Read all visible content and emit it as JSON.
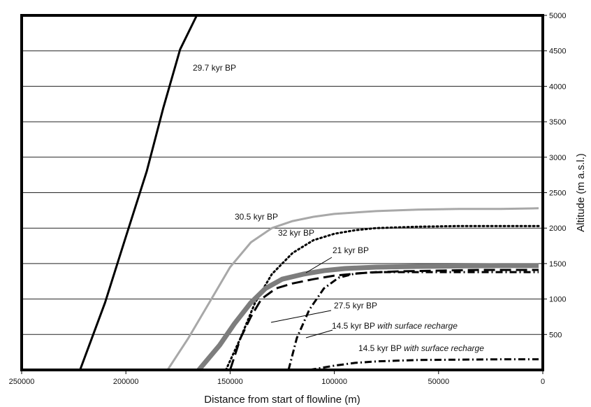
{
  "chart_data": {
    "type": "line",
    "xlabel": "Distance from start of flowline (m)",
    "ylabel": "Altitude (m a.s.l.)",
    "xlim": [
      250000,
      0
    ],
    "ylim": [
      0,
      5000
    ],
    "x_ticks": [
      "250000",
      "200000",
      "150000",
      "100000",
      "50000",
      "0"
    ],
    "y_ticks": [
      "500",
      "1000",
      "1500",
      "2000",
      "2500",
      "3000",
      "3500",
      "4000",
      "4500",
      "5000"
    ],
    "grid": "horizontal",
    "series": [
      {
        "name": "29.7 kyr BP",
        "style": "solid-black",
        "x": [
          222000,
          210000,
          200000,
          190000,
          182000,
          174000,
          166000
        ],
        "y": [
          0,
          950,
          1880,
          2800,
          3700,
          4520,
          5000
        ]
      },
      {
        "name": "30.5 kyr BP",
        "style": "solid-light-gray",
        "x": [
          180000,
          170000,
          160000,
          150000,
          140000,
          130000,
          120000,
          110000,
          100000,
          80000,
          60000,
          40000,
          20000,
          2000
        ],
        "y": [
          0,
          450,
          950,
          1450,
          1800,
          2000,
          2100,
          2160,
          2200,
          2240,
          2260,
          2270,
          2270,
          2280
        ]
      },
      {
        "name": "32 kyr BP",
        "style": "dotted",
        "x": [
          152000,
          145000,
          138000,
          130000,
          120000,
          110000,
          100000,
          90000,
          80000,
          60000,
          40000,
          20000,
          2000
        ],
        "y": [
          0,
          450,
          950,
          1350,
          1650,
          1830,
          1920,
          1970,
          2000,
          2020,
          2030,
          2030,
          2030
        ]
      },
      {
        "name": "21 kyr BP",
        "style": "thick-gray",
        "x": [
          165000,
          155000,
          148000,
          140000,
          133000,
          125000,
          115000,
          105000,
          95000,
          80000,
          60000,
          40000,
          20000,
          2000
        ],
        "y": [
          0,
          350,
          650,
          950,
          1150,
          1280,
          1350,
          1400,
          1430,
          1450,
          1460,
          1465,
          1470,
          1470
        ]
      },
      {
        "name": "27.5 kyr BP",
        "style": "long-dash",
        "x": [
          150000,
          145000,
          140000,
          135000,
          128000,
          120000,
          110000,
          100000,
          85000,
          70000,
          50000,
          30000,
          2000
        ],
        "y": [
          0,
          450,
          750,
          1000,
          1150,
          1220,
          1280,
          1330,
          1370,
          1390,
          1400,
          1410,
          1410
        ]
      },
      {
        "name": "14.5 kyr BP with surface recharge",
        "style": "dash-dot",
        "x": [
          122000,
          118000,
          112000,
          105000,
          98000,
          90000,
          80000,
          60000,
          40000,
          20000,
          2000
        ],
        "y": [
          0,
          450,
          850,
          1150,
          1300,
          1360,
          1380,
          1380,
          1380,
          1380,
          1380
        ]
      },
      {
        "name": "14.5 kyr BP with surface recharge",
        "style": "dash-dot",
        "x": [
          112000,
          100000,
          90000,
          80000,
          70000,
          60000,
          40000,
          20000,
          2000
        ],
        "y": [
          0,
          60,
          100,
          120,
          130,
          140,
          145,
          150,
          150
        ]
      }
    ],
    "annotations": [
      {
        "text": "29.7 kyr BP",
        "suffix": ""
      },
      {
        "text": "30.5 kyr BP",
        "suffix": ""
      },
      {
        "text": "32 kyr BP",
        "suffix": ""
      },
      {
        "text": "21 kyr BP",
        "suffix": ""
      },
      {
        "text": "27.5 kyr BP",
        "suffix": ""
      },
      {
        "text": "14.5 kyr BP ",
        "suffix": "with surface recharge"
      },
      {
        "text": "14.5 kyr BP ",
        "suffix": "with surface recharge"
      }
    ]
  }
}
